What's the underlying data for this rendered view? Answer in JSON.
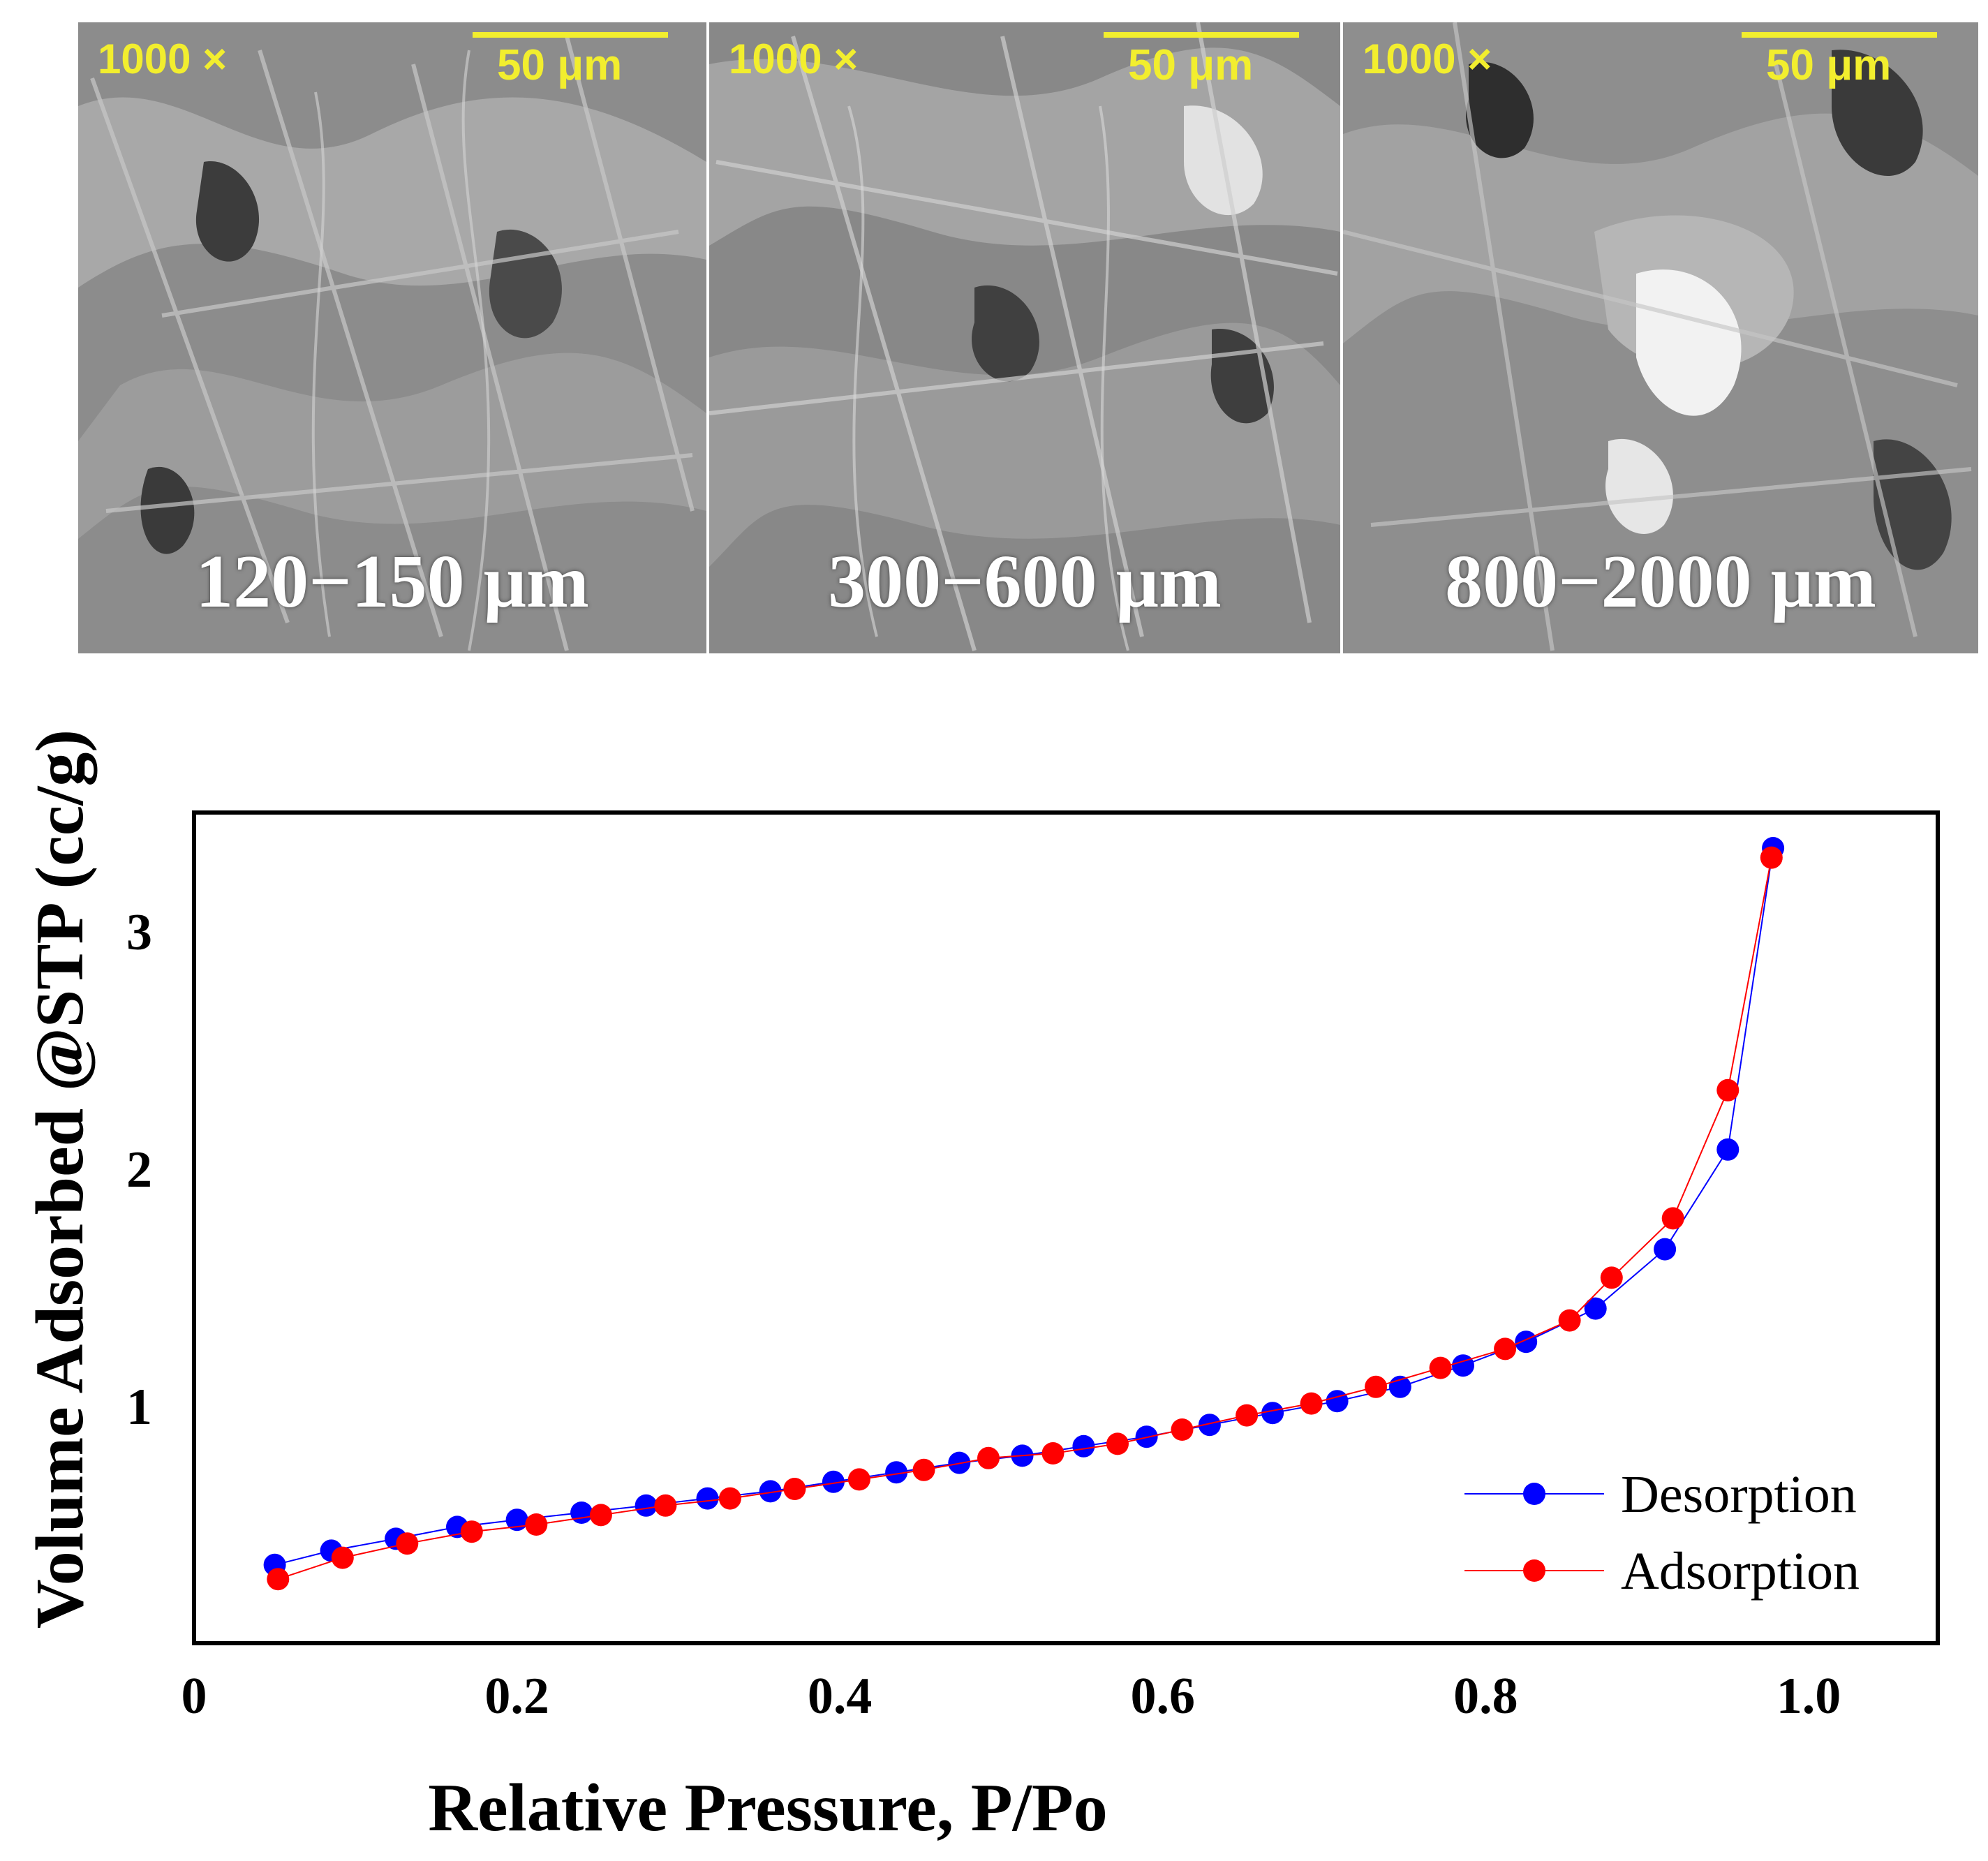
{
  "sem_panels": [
    {
      "magnification": "1000 ×",
      "scale_bar": "50 μm",
      "particle_size": "120−150 μm"
    },
    {
      "magnification": "1000 ×",
      "scale_bar": "50 μm",
      "particle_size": "300−600 μm"
    },
    {
      "magnification": "1000 ×",
      "scale_bar": "50 μm",
      "particle_size": "800−2000 μm"
    }
  ],
  "colors": {
    "desorption": "#0000ff",
    "adsorption": "#ff0000",
    "scale_text": "#f2ee2e"
  },
  "chart_data": {
    "type": "line",
    "title": "",
    "xlabel": "Relative Pressure, P/Po",
    "ylabel": "Volume Adsorbed @STP (cc/g)",
    "xlim": [
      0,
      1.08
    ],
    "ylim": [
      0,
      3.5
    ],
    "x_ticks": [
      "0",
      "0.2",
      "0.4",
      "0.6",
      "0.8",
      "1.0"
    ],
    "y_ticks": [
      "1",
      "2",
      "3"
    ],
    "grid": false,
    "legend_position": "bottom-right",
    "series": [
      {
        "name": "Desorption",
        "x": [
          0.05,
          0.085,
          0.125,
          0.163,
          0.2,
          0.24,
          0.28,
          0.318,
          0.357,
          0.396,
          0.435,
          0.474,
          0.513,
          0.551,
          0.59,
          0.629,
          0.668,
          0.708,
          0.747,
          0.786,
          0.825,
          0.868,
          0.911,
          0.95,
          0.978
        ],
        "y": [
          0.33,
          0.39,
          0.44,
          0.49,
          0.52,
          0.55,
          0.58,
          0.61,
          0.64,
          0.68,
          0.72,
          0.76,
          0.79,
          0.83,
          0.87,
          0.92,
          0.97,
          1.02,
          1.08,
          1.17,
          1.27,
          1.41,
          1.66,
          2.08,
          3.35
        ]
      },
      {
        "name": "Adsorption",
        "x": [
          0.052,
          0.092,
          0.132,
          0.172,
          0.212,
          0.252,
          0.292,
          0.332,
          0.372,
          0.412,
          0.452,
          0.492,
          0.532,
          0.572,
          0.612,
          0.652,
          0.692,
          0.732,
          0.772,
          0.812,
          0.852,
          0.878,
          0.916,
          0.95,
          0.977
        ],
        "y": [
          0.27,
          0.36,
          0.42,
          0.47,
          0.5,
          0.54,
          0.58,
          0.61,
          0.65,
          0.69,
          0.73,
          0.78,
          0.8,
          0.84,
          0.9,
          0.96,
          1.01,
          1.08,
          1.16,
          1.24,
          1.36,
          1.54,
          1.79,
          2.33,
          3.31
        ]
      }
    ]
  }
}
